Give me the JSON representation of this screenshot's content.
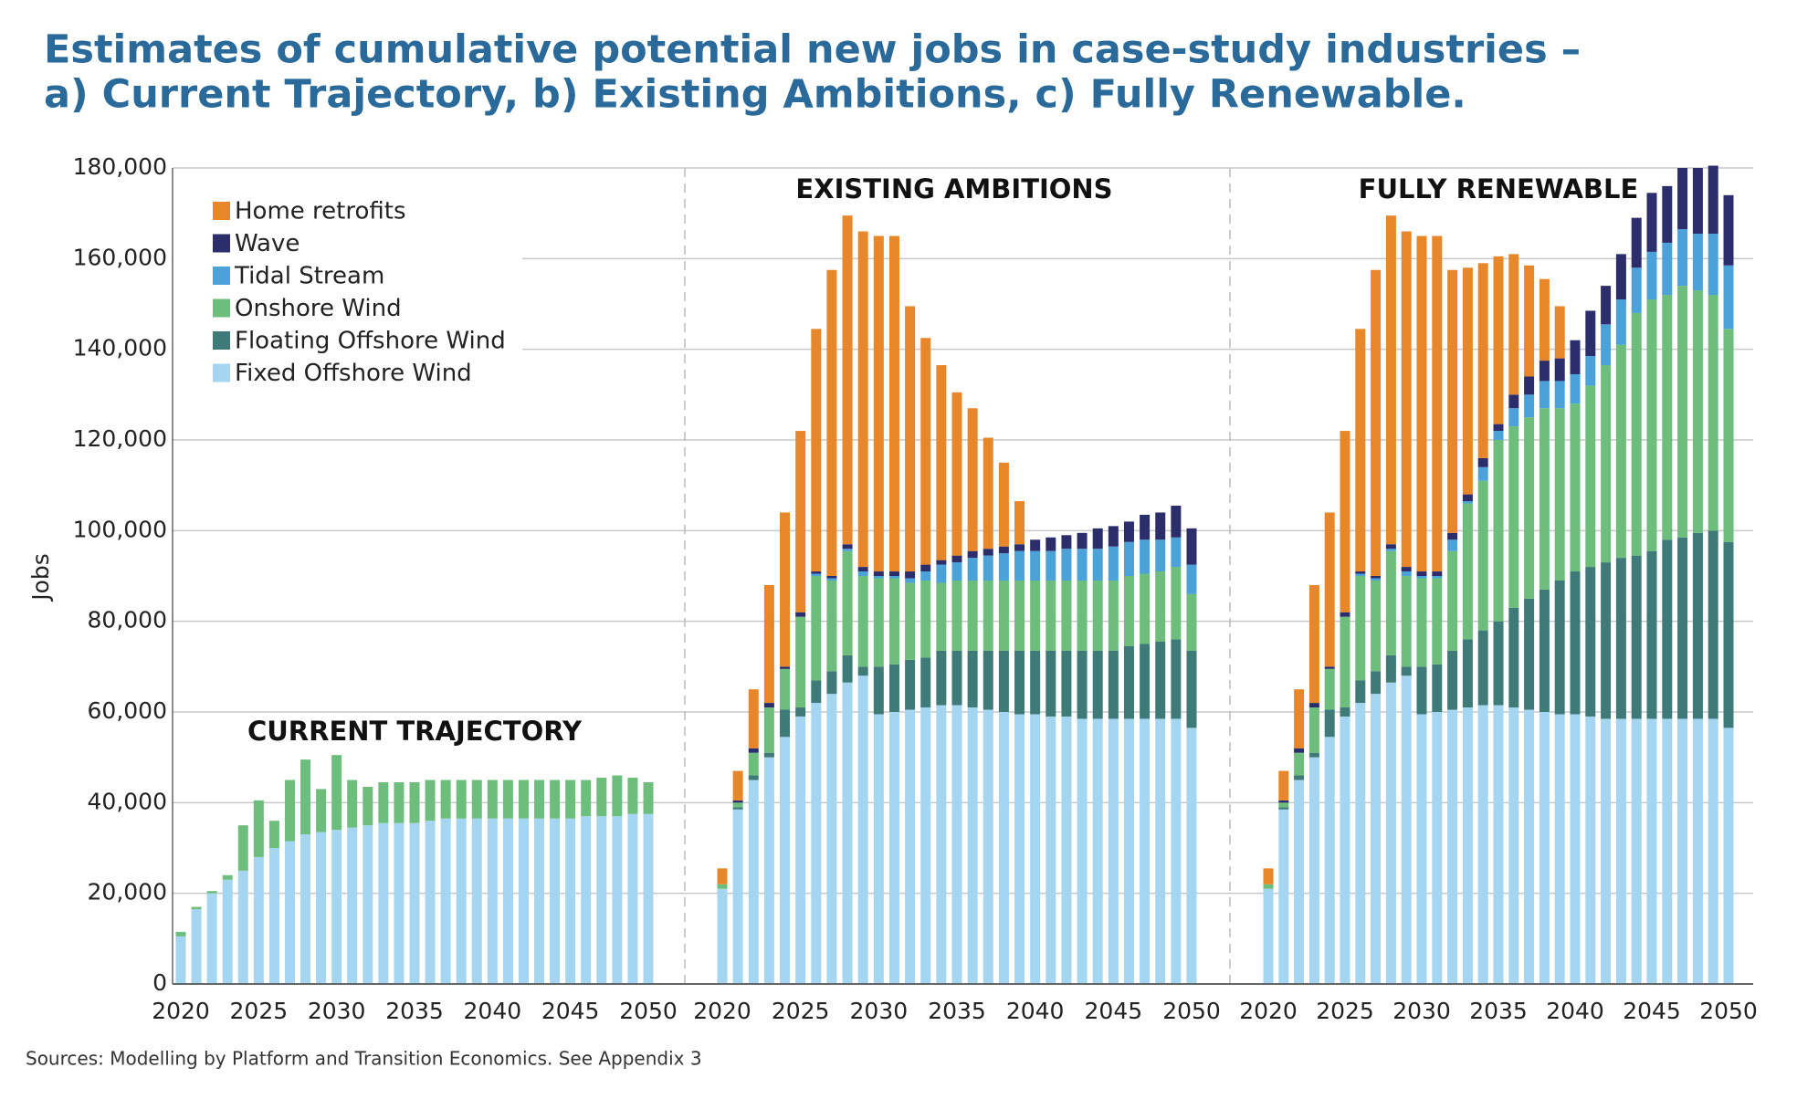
{
  "chart_data": {
    "type": "bar",
    "stacked": true,
    "title": [
      "Estimates of cumulative potential new jobs in case-study industries –",
      "a) Current Trajectory, b) Existing Ambitions, c) Fully Renewable."
    ],
    "ylabel": "Jobs",
    "source": "Sources: Modelling by Platform and Transition Economics. See Appendix 3",
    "ylim": [
      0,
      180000
    ],
    "yticks": [
      0,
      {
        "value": 20000,
        "label": "20,000"
      },
      {
        "value": 40000,
        "label": "40,000"
      },
      {
        "value": 60000,
        "label": "60,000"
      },
      {
        "value": 80000,
        "label": "80,000"
      },
      {
        "value": 100000,
        "label": "100,000"
      },
      {
        "value": 120000,
        "label": "120,000"
      },
      {
        "value": 140000,
        "label": "140,000"
      },
      {
        "value": 160000,
        "label": "160,000"
      },
      {
        "value": 180000,
        "label": "180,000"
      }
    ],
    "grid": true,
    "legend": "upper left",
    "series": [
      {
        "name": "Home retrofits",
        "color": "#e8862a"
      },
      {
        "name": "Wave",
        "color": "#2c2e6c"
      },
      {
        "name": "Tidal Stream",
        "color": "#4aa2d8"
      },
      {
        "name": "Onshore Wind",
        "color": "#6dbd7d"
      },
      {
        "name": "Floating Offshore Wind",
        "color": "#3e7a77"
      },
      {
        "name": "Fixed Offshore Wind",
        "color": "#a4d5f1"
      }
    ],
    "panels": [
      {
        "label": "CURRENT TRAJECTORY",
        "x": [
          2020,
          2021,
          2022,
          2023,
          2024,
          2025,
          2026,
          2027,
          2028,
          2029,
          2030,
          2031,
          2032,
          2033,
          2034,
          2035,
          2036,
          2037,
          2038,
          2039,
          2040,
          2041,
          2042,
          2043,
          2044,
          2045,
          2046,
          2047,
          2048,
          2049,
          2050
        ],
        "xlim": [
          2020,
          2050
        ],
        "xticks": [
          2020,
          2025,
          2030,
          2035,
          2040,
          2045,
          2050
        ],
        "series": [
          {
            "values": [
              0,
              0,
              0,
              0,
              0,
              0,
              0,
              0,
              0,
              0,
              0,
              0,
              0,
              0,
              0,
              0,
              0,
              0,
              0,
              0,
              0,
              0,
              0,
              0,
              0,
              0,
              0,
              0,
              0,
              0,
              0
            ]
          },
          {
            "values": [
              0,
              0,
              0,
              0,
              0,
              0,
              0,
              0,
              0,
              0,
              0,
              0,
              0,
              0,
              0,
              0,
              0,
              0,
              0,
              0,
              0,
              0,
              0,
              0,
              0,
              0,
              0,
              0,
              0,
              0,
              0
            ]
          },
          {
            "values": [
              0,
              0,
              0,
              0,
              0,
              0,
              0,
              0,
              0,
              0,
              0,
              0,
              0,
              0,
              0,
              0,
              0,
              0,
              0,
              0,
              0,
              0,
              0,
              0,
              0,
              0,
              0,
              0,
              0,
              0,
              0
            ]
          },
          {
            "values": [
              1000,
              500,
              500,
              1000,
              10000,
              12500,
              6000,
              13500,
              16500,
              9500,
              16500,
              10500,
              8500,
              9000,
              9000,
              9000,
              9000,
              8500,
              8500,
              8500,
              8500,
              8500,
              8500,
              8500,
              8500,
              8500,
              8000,
              8500,
              9000,
              8000,
              7000
            ]
          },
          {
            "values": [
              0,
              0,
              0,
              0,
              0,
              0,
              0,
              0,
              0,
              0,
              0,
              0,
              0,
              0,
              0,
              0,
              0,
              0,
              0,
              0,
              0,
              0,
              0,
              0,
              0,
              0,
              0,
              0,
              0,
              0,
              0
            ]
          },
          {
            "values": [
              10500,
              16500,
              20000,
              23000,
              25000,
              28000,
              30000,
              31500,
              33000,
              33500,
              34000,
              34500,
              35000,
              35500,
              35500,
              35500,
              36000,
              36500,
              36500,
              36500,
              36500,
              36500,
              36500,
              36500,
              36500,
              36500,
              37000,
              37000,
              37000,
              37500,
              37500
            ]
          }
        ]
      },
      {
        "label": "EXISTING AMBITIONS",
        "x": [
          2020,
          2021,
          2022,
          2023,
          2024,
          2025,
          2026,
          2027,
          2028,
          2029,
          2030,
          2031,
          2032,
          2033,
          2034,
          2035,
          2036,
          2037,
          2038,
          2039,
          2040,
          2041,
          2042,
          2043,
          2044,
          2045,
          2046,
          2047,
          2048,
          2049,
          2050
        ],
        "xlim": [
          2020,
          2050
        ],
        "xticks": [
          2020,
          2025,
          2030,
          2035,
          2040,
          2045,
          2050
        ],
        "series": [
          {
            "values": [
              3500,
              6500,
              13000,
              26000,
              34000,
              40000,
              53500,
              67500,
              72500,
              74000,
              74000,
              74000,
              58500,
              50000,
              43000,
              36000,
              31500,
              24500,
              18500,
              9500,
              0,
              0,
              0,
              0,
              0,
              0,
              0,
              0,
              0,
              0,
              0
            ]
          },
          {
            "values": [
              0,
              500,
              1000,
              1000,
              500,
              1000,
              500,
              500,
              1000,
              1000,
              1000,
              1000,
              1500,
              1500,
              1000,
              1500,
              1500,
              1500,
              1500,
              1500,
              2500,
              3000,
              3000,
              3500,
              4500,
              4500,
              4500,
              5500,
              6000,
              7000,
              8000
            ]
          },
          {
            "values": [
              0,
              0,
              0,
              0,
              0,
              0,
              500,
              500,
              500,
              1000,
              500,
              500,
              1000,
              2000,
              4000,
              4000,
              5000,
              5500,
              6000,
              6500,
              6500,
              6500,
              7000,
              7000,
              7000,
              7500,
              7500,
              7500,
              7000,
              6500,
              6500
            ]
          },
          {
            "values": [
              1000,
              1000,
              5000,
              10000,
              9000,
              20000,
              23000,
              20000,
              23000,
              20000,
              19500,
              19000,
              17000,
              17000,
              15000,
              15500,
              15500,
              15500,
              15500,
              15500,
              15500,
              15500,
              15500,
              15500,
              15500,
              15500,
              15500,
              15500,
              15500,
              16000,
              12500
            ]
          },
          {
            "values": [
              0,
              500,
              1000,
              1000,
              6000,
              2000,
              5000,
              5000,
              6000,
              2000,
              10500,
              10500,
              11000,
              11000,
              12000,
              12000,
              12500,
              13000,
              13500,
              14000,
              14000,
              14500,
              14500,
              15000,
              15000,
              15000,
              16000,
              16500,
              17000,
              17500,
              17000
            ]
          },
          {
            "values": [
              21000,
              38500,
              45000,
              50000,
              54500,
              59000,
              62000,
              64000,
              66500,
              68000,
              59500,
              60000,
              60500,
              61000,
              61500,
              61500,
              61000,
              60500,
              60000,
              59500,
              59500,
              59000,
              59000,
              58500,
              58500,
              58500,
              58500,
              58500,
              58500,
              58500,
              56500
            ]
          }
        ]
      },
      {
        "label": "FULLY RENEWABLE",
        "x": [
          2020,
          2021,
          2022,
          2023,
          2024,
          2025,
          2026,
          2027,
          2028,
          2029,
          2030,
          2031,
          2032,
          2033,
          2034,
          2035,
          2036,
          2037,
          2038,
          2039,
          2040,
          2041,
          2042,
          2043,
          2044,
          2045,
          2046,
          2047,
          2048,
          2049,
          2050
        ],
        "xlim": [
          2020,
          2050
        ],
        "xticks": [
          2020,
          2025,
          2030,
          2035,
          2040,
          2045,
          2050
        ],
        "series": [
          {
            "values": [
              3500,
              6500,
              13000,
              26000,
              34000,
              40000,
              53500,
              67500,
              72500,
              74000,
              74000,
              74000,
              58000,
              50000,
              43000,
              37000,
              31000,
              24500,
              18000,
              11500,
              0,
              0,
              0,
              0,
              0,
              0,
              0,
              0,
              0,
              0,
              0
            ]
          },
          {
            "values": [
              0,
              500,
              1000,
              1000,
              500,
              1000,
              500,
              500,
              1000,
              1000,
              1000,
              1000,
              1500,
              1500,
              2000,
              1500,
              3000,
              4000,
              4500,
              5000,
              7500,
              10000,
              8500,
              10000,
              11000,
              13000,
              12500,
              13500,
              14500,
              15000,
              15500
            ]
          },
          {
            "values": [
              0,
              0,
              0,
              0,
              0,
              0,
              500,
              500,
              500,
              1000,
              500,
              500,
              2500,
              500,
              3000,
              2000,
              4000,
              5000,
              6000,
              6000,
              6500,
              6500,
              9000,
              10000,
              10000,
              10500,
              11500,
              12500,
              12500,
              13500,
              14000
            ]
          },
          {
            "values": [
              1000,
              1000,
              5000,
              10000,
              9000,
              20000,
              23000,
              20000,
              23000,
              20000,
              19500,
              19000,
              22000,
              30000,
              33000,
              40000,
              40000,
              40000,
              40000,
              38000,
              37000,
              40000,
              43500,
              47000,
              53500,
              55500,
              54000,
              55500,
              53500,
              52000,
              47000
            ]
          },
          {
            "values": [
              0,
              500,
              1000,
              1000,
              6000,
              2000,
              5000,
              5000,
              6000,
              2000,
              10500,
              10500,
              13000,
              15000,
              16500,
              18500,
              22000,
              24500,
              27000,
              29500,
              31500,
              33000,
              34500,
              35500,
              36000,
              37000,
              39500,
              40000,
              41000,
              41500,
              41000
            ]
          },
          {
            "values": [
              21000,
              38500,
              45000,
              50000,
              54500,
              59000,
              62000,
              64000,
              66500,
              68000,
              59500,
              60000,
              60500,
              61000,
              61500,
              61500,
              61000,
              60500,
              60000,
              59500,
              59500,
              59000,
              58500,
              58500,
              58500,
              58500,
              58500,
              58500,
              58500,
              58500,
              56500
            ]
          }
        ]
      }
    ]
  }
}
